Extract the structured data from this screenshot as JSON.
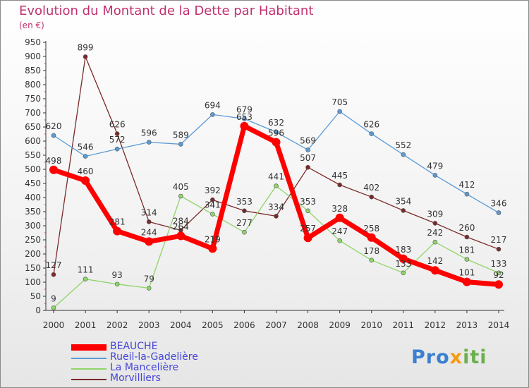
{
  "chart_data": {
    "type": "line",
    "title": "Evolution du Montant de la Dette par Habitant",
    "subtitle": "(en €)",
    "x": [
      2000,
      2001,
      2002,
      2003,
      2004,
      2005,
      2006,
      2007,
      2008,
      2009,
      2010,
      2011,
      2012,
      2013,
      2014
    ],
    "ylim": [
      0,
      950
    ],
    "yticks": [
      0,
      50,
      100,
      150,
      200,
      250,
      300,
      350,
      400,
      450,
      500,
      550,
      600,
      650,
      700,
      750,
      800,
      850,
      900,
      950
    ],
    "grid": false,
    "legend_position": "bottom-left",
    "series": [
      {
        "name": "BEAUCHE",
        "color": "#ff0000",
        "values": [
          498,
          460,
          281,
          244,
          264,
          219,
          653,
          596,
          257,
          328,
          258,
          183,
          142,
          101,
          92
        ]
      },
      {
        "name": "Rueil-la-Gadelière",
        "color": "#5b9bd5",
        "values": [
          620,
          546,
          572,
          596,
          589,
          694,
          679,
          632,
          569,
          705,
          626,
          552,
          479,
          412,
          346
        ]
      },
      {
        "name": "La Mancelière",
        "color": "#8fd46a",
        "values": [
          9,
          111,
          93,
          79,
          405,
          341,
          277,
          441,
          353,
          247,
          178,
          133,
          242,
          181,
          133
        ]
      },
      {
        "name": "Morvilliers",
        "color": "#7a2a2a",
        "values": [
          127,
          899,
          626,
          314,
          284,
          392,
          353,
          334,
          507,
          445,
          402,
          354,
          309,
          260,
          217
        ]
      }
    ]
  },
  "logo": {
    "p1": "Pro",
    "p2": "x",
    "p3": "iti"
  }
}
